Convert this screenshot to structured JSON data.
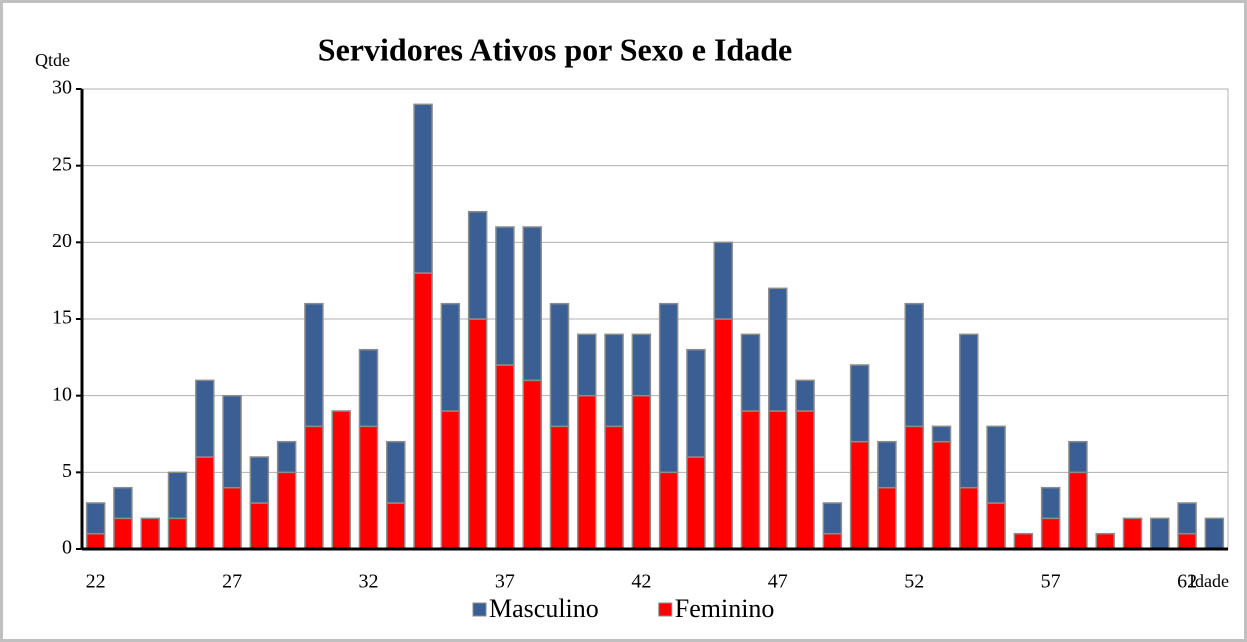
{
  "chart_data": {
    "type": "stacked_bar",
    "title": "Servidores Ativos por Sexo e Idade",
    "y_label": "Qtde",
    "x_label": "Idade",
    "categories": [
      "22",
      null,
      null,
      null,
      null,
      "27",
      null,
      null,
      null,
      null,
      "32",
      null,
      null,
      null,
      null,
      "37",
      null,
      null,
      null,
      null,
      "42",
      null,
      null,
      null,
      null,
      "47",
      null,
      null,
      null,
      null,
      "52",
      null,
      null,
      null,
      null,
      "57",
      null,
      null,
      null,
      null,
      "62",
      null
    ],
    "series": [
      {
        "name": "Masculino",
        "color": "#3a5f94",
        "values": [
          2,
          2,
          0,
          3,
          5,
          6,
          3,
          2,
          8,
          0,
          5,
          4,
          11,
          7,
          7,
          9,
          10,
          8,
          4,
          6,
          4,
          11,
          7,
          5,
          5,
          8,
          2,
          2,
          5,
          3,
          8,
          1,
          10,
          5,
          0,
          2,
          2,
          0,
          0,
          2,
          2,
          2
        ]
      },
      {
        "name": "Feminino",
        "color": "#ff0000",
        "values": [
          1,
          2,
          2,
          2,
          6,
          4,
          3,
          5,
          8,
          9,
          8,
          3,
          18,
          9,
          15,
          12,
          11,
          8,
          10,
          8,
          10,
          5,
          6,
          15,
          9,
          9,
          9,
          1,
          7,
          4,
          8,
          7,
          4,
          3,
          1,
          2,
          5,
          1,
          2,
          0,
          1,
          0
        ]
      }
    ],
    "ylim": [
      0,
      30
    ],
    "yticks": [
      0,
      5,
      10,
      15,
      20,
      25,
      30
    ],
    "grid": true,
    "legend": "bottom"
  }
}
